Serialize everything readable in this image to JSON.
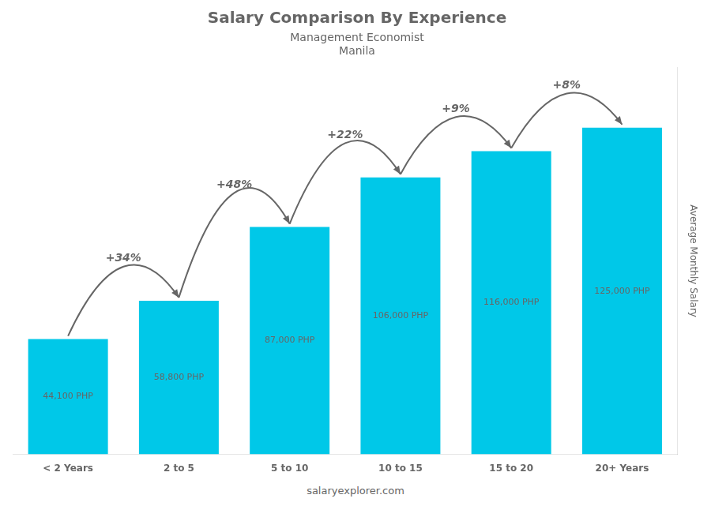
{
  "chart_data": {
    "type": "bar",
    "title": "Salary Comparison By Experience",
    "subtitle": [
      "Management Economist",
      "Manila"
    ],
    "ylabel": "Average Monthly Salary",
    "footer": "salaryexplorer.com",
    "categories": [
      "< 2 Years",
      "2 to 5",
      "5 to 10",
      "10 to 15",
      "15 to 20",
      "20+ Years"
    ],
    "values": [
      44100,
      58800,
      87000,
      106000,
      116000,
      125000
    ],
    "value_labels": [
      "44,100 PHP",
      "58,800 PHP",
      "87,000 PHP",
      "106,000 PHP",
      "116,000 PHP",
      "125,000 PHP"
    ],
    "data_labels": true,
    "color": "#00c8e8",
    "ylim": [
      0,
      148000
    ],
    "grid": false,
    "tick_labels": "x",
    "annotations": [
      {
        "text": "+34%",
        "from": "< 2 Years",
        "to": "2 to 5"
      },
      {
        "text": "+48%",
        "from": "2 to 5",
        "to": "5 to 10"
      },
      {
        "text": "+22%",
        "from": "5 to 10",
        "to": "10 to 15"
      },
      {
        "text": "+9%",
        "from": "10 to 15",
        "to": "15 to 20"
      },
      {
        "text": "+8%",
        "from": "15 to 20",
        "to": "20+ Years"
      }
    ]
  }
}
